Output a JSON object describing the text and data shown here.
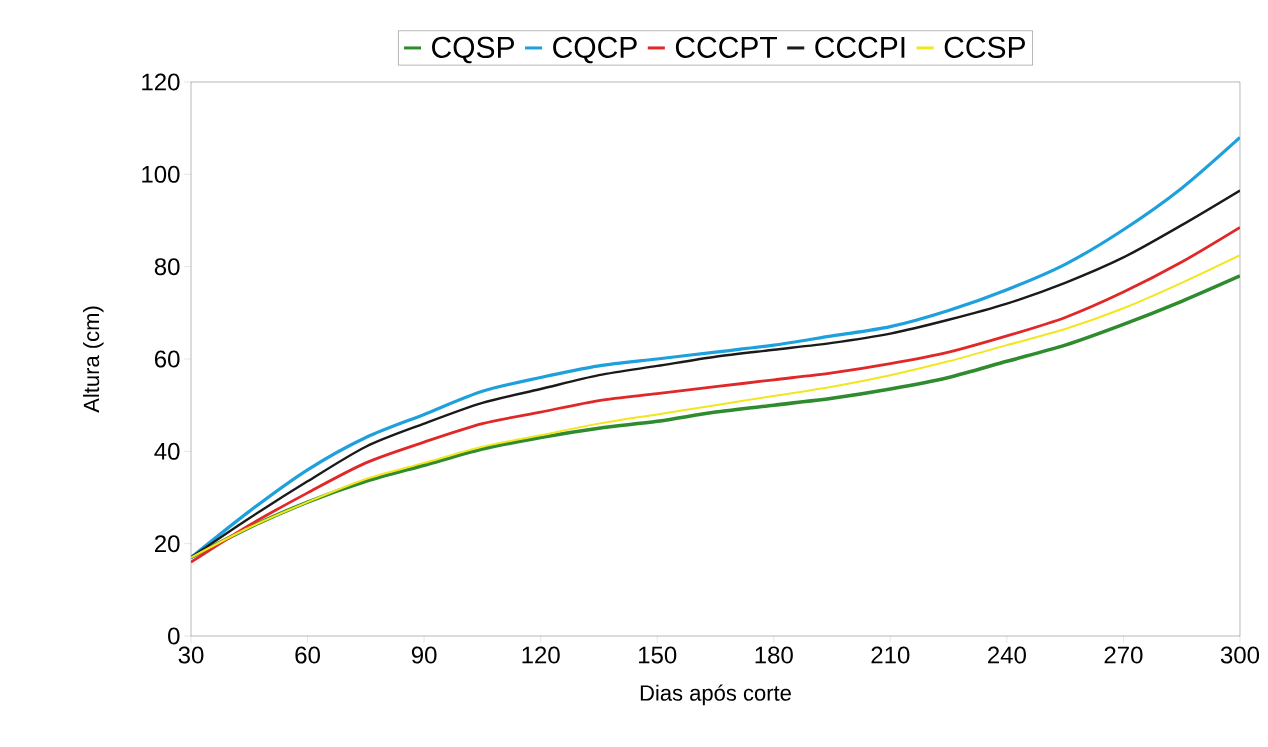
{
  "chart_data": {
    "type": "line",
    "xlabel": "Dias após corte",
    "ylabel": "Altura (cm)",
    "x": [
      30,
      45,
      60,
      75,
      90,
      105,
      120,
      135,
      150,
      165,
      180,
      195,
      210,
      225,
      240,
      255,
      270,
      285,
      300
    ],
    "xlim": [
      30,
      300
    ],
    "xticks": [
      30,
      60,
      90,
      120,
      150,
      180,
      210,
      240,
      270,
      300
    ],
    "ylim": [
      0,
      120
    ],
    "yticks": [
      0,
      20,
      40,
      60,
      80,
      100,
      120
    ],
    "grid": false,
    "legend": "top",
    "marker": "none",
    "line_style": "solid",
    "series": [
      {
        "name": "CQSP",
        "color": "#2e8b2e",
        "values": [
          17,
          23.5,
          29,
          33.5,
          37,
          40.5,
          43,
          45,
          46.5,
          48.5,
          50,
          51.5,
          53.5,
          56,
          59.5,
          63,
          67.5,
          72.5,
          78
        ]
      },
      {
        "name": "CQCP",
        "color": "#1ea0dc",
        "values": [
          17,
          27,
          36,
          43,
          48,
          53,
          56,
          58.5,
          60,
          61.5,
          63,
          65,
          67,
          70.5,
          75,
          80.5,
          88,
          97,
          108
        ]
      },
      {
        "name": "CCCPT",
        "color": "#e02828",
        "values": [
          16,
          24,
          31,
          37.5,
          42,
          46,
          48.5,
          51,
          52.5,
          54,
          55.5,
          57,
          59,
          61.5,
          65,
          69,
          74.5,
          81,
          88.5
        ]
      },
      {
        "name": "CCCPI",
        "color": "#1a1a1a",
        "values": [
          17,
          25.5,
          33.5,
          41,
          46,
          50.5,
          53.5,
          56.5,
          58.5,
          60.5,
          62,
          63.5,
          65.5,
          68.5,
          72,
          76.5,
          82,
          89,
          96.5
        ]
      },
      {
        "name": "CCSP",
        "color": "#f2e61e",
        "values": [
          17,
          23.5,
          29,
          34,
          37.5,
          41,
          43.5,
          46,
          48,
          50,
          52,
          54,
          56.5,
          59.5,
          63,
          66.5,
          71,
          76.5,
          82.5
        ]
      }
    ]
  }
}
